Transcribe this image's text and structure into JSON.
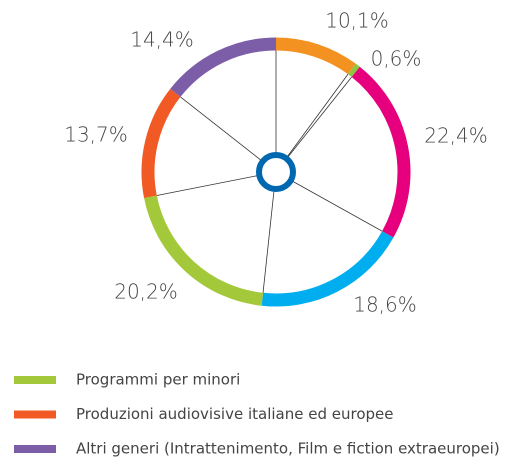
{
  "chart_data": {
    "type": "donut",
    "categories": [
      null,
      null,
      null,
      null,
      "Programmi per minori",
      "Produzioni audiovisive italiane ed europee",
      "Altri generi (Intrattenimento, Film e fiction extraeuropei)"
    ],
    "values": [
      10.1,
      0.6,
      22.4,
      18.6,
      20.2,
      13.7,
      14.4
    ],
    "value_labels": [
      "10,1%",
      "0,6%",
      "22,4%",
      "18,6%",
      "20,2%",
      "13,7%",
      "14,4%"
    ],
    "colors": [
      "#f39220",
      "#8dc63f",
      "#e6007e",
      "#00aeef",
      "#a3c93a",
      "#f15a24",
      "#7b5ea7"
    ]
  }
}
